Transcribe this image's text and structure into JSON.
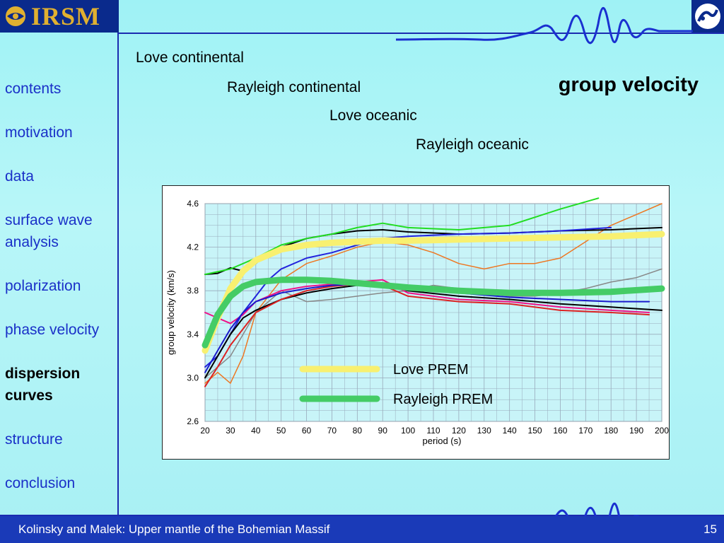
{
  "header": {
    "logo_text": "IRSM",
    "title": "group velocity",
    "labels": [
      "Love continental",
      "Rayleigh continental",
      "Love oceanic",
      "Rayleigh oceanic"
    ]
  },
  "nav": {
    "items": [
      {
        "label": "contents",
        "active": false
      },
      {
        "label": "motivation",
        "active": false
      },
      {
        "label": "data",
        "active": false
      },
      {
        "label": "surface wave analysis",
        "active": false
      },
      {
        "label": "polarization",
        "active": false
      },
      {
        "label": "phase velocity",
        "active": false
      },
      {
        "label": "dispersion curves",
        "active": true
      },
      {
        "label": "structure",
        "active": false
      },
      {
        "label": "conclusion",
        "active": false
      }
    ]
  },
  "footer": {
    "text": "Kolinsky and Malek: Upper mantle of the Bohemian Massif",
    "page": "15"
  },
  "colors": {
    "nav_link": "#1a30c8",
    "frame_blue": "#1a2bb0",
    "love_prem": "#f8f070",
    "rayleigh_prem": "#44cc66"
  },
  "chart_data": {
    "type": "line",
    "xlabel": "period (s)",
    "ylabel": "group velocity (km/s)",
    "xlim": [
      20,
      200
    ],
    "ylim": [
      2.6,
      4.6
    ],
    "xticks": [
      20,
      30,
      40,
      50,
      60,
      70,
      80,
      90,
      100,
      110,
      120,
      130,
      140,
      150,
      160,
      170,
      180,
      190,
      200
    ],
    "yticks": [
      2.6,
      3.0,
      3.4,
      3.8,
      4.2,
      4.6
    ],
    "grid": true,
    "legend_position": "bottom-center",
    "series": [
      {
        "name": "Love PREM",
        "color": "#f8f070",
        "width": 9,
        "legend": true,
        "x": [
          20,
          25,
          30,
          35,
          40,
          50,
          60,
          70,
          80,
          90,
          100,
          120,
          140,
          160,
          180,
          200
        ],
        "y": [
          3.25,
          3.55,
          3.82,
          3.98,
          4.08,
          4.18,
          4.22,
          4.24,
          4.25,
          4.26,
          4.26,
          4.27,
          4.28,
          4.29,
          4.3,
          4.32
        ]
      },
      {
        "name": "Rayleigh PREM",
        "color": "#44cc66",
        "width": 9,
        "legend": true,
        "x": [
          20,
          25,
          30,
          35,
          40,
          50,
          60,
          70,
          80,
          90,
          100,
          120,
          140,
          160,
          180,
          200
        ],
        "y": [
          3.3,
          3.58,
          3.75,
          3.84,
          3.88,
          3.9,
          3.9,
          3.89,
          3.87,
          3.85,
          3.83,
          3.8,
          3.78,
          3.78,
          3.79,
          3.82
        ]
      },
      {
        "color": "#000000",
        "width": 2,
        "x": [
          20,
          25,
          30,
          35,
          40,
          45,
          50,
          55,
          60,
          70,
          80,
          90,
          100,
          120,
          140,
          160,
          180,
          200
        ],
        "y": [
          3.95,
          3.96,
          4.01,
          3.98,
          4.05,
          4.15,
          4.2,
          4.24,
          4.28,
          4.32,
          4.35,
          4.36,
          4.34,
          4.32,
          4.33,
          4.35,
          4.36,
          4.38
        ]
      },
      {
        "color": "#22dd22",
        "width": 2,
        "x": [
          20,
          30,
          40,
          50,
          60,
          70,
          80,
          90,
          100,
          120,
          140,
          160,
          175
        ],
        "y": [
          3.95,
          4.0,
          4.1,
          4.22,
          4.28,
          4.32,
          4.38,
          4.42,
          4.38,
          4.36,
          4.4,
          4.55,
          4.65
        ]
      },
      {
        "color": "#2222dd",
        "width": 2,
        "x": [
          20,
          25,
          30,
          35,
          40,
          45,
          50,
          60,
          70,
          80,
          90,
          100,
          120,
          140,
          160,
          180
        ],
        "y": [
          3.1,
          3.2,
          3.4,
          3.6,
          3.75,
          3.9,
          4.0,
          4.1,
          4.15,
          4.22,
          4.28,
          4.3,
          4.32,
          4.33,
          4.35,
          4.38
        ]
      },
      {
        "color": "#ee7722",
        "width": 1.5,
        "x": [
          20,
          25,
          30,
          35,
          40,
          50,
          60,
          70,
          80,
          90,
          100,
          110,
          120,
          130,
          140,
          150,
          160,
          170,
          180,
          190,
          200
        ],
        "y": [
          2.95,
          3.05,
          2.95,
          3.2,
          3.6,
          3.9,
          4.05,
          4.12,
          4.2,
          4.25,
          4.22,
          4.15,
          4.05,
          4.0,
          4.05,
          4.05,
          4.1,
          4.25,
          4.4,
          4.5,
          4.6
        ]
      },
      {
        "color": "#888888",
        "width": 1.5,
        "x": [
          20,
          30,
          40,
          50,
          60,
          70,
          80,
          90,
          100,
          110,
          120,
          130,
          140,
          150,
          160,
          170,
          180,
          190,
          200
        ],
        "y": [
          3.0,
          3.2,
          3.6,
          3.8,
          3.7,
          3.72,
          3.75,
          3.78,
          3.8,
          3.85,
          3.82,
          3.78,
          3.75,
          3.75,
          3.78,
          3.82,
          3.88,
          3.92,
          4.0
        ]
      },
      {
        "color": "#000000",
        "width": 2,
        "x": [
          20,
          25,
          30,
          35,
          40,
          50,
          60,
          70,
          80,
          90,
          100,
          120,
          140,
          160,
          180,
          200
        ],
        "y": [
          3.0,
          3.2,
          3.4,
          3.55,
          3.62,
          3.72,
          3.78,
          3.82,
          3.85,
          3.85,
          3.8,
          3.75,
          3.72,
          3.68,
          3.65,
          3.62
        ]
      },
      {
        "color": "#ee1188",
        "width": 2,
        "x": [
          20,
          25,
          30,
          35,
          40,
          50,
          60,
          70,
          80,
          90,
          100,
          120,
          140,
          160,
          180,
          195
        ],
        "y": [
          3.6,
          3.55,
          3.5,
          3.58,
          3.7,
          3.8,
          3.84,
          3.86,
          3.88,
          3.9,
          3.78,
          3.72,
          3.7,
          3.65,
          3.62,
          3.6
        ]
      },
      {
        "color": "#dd2222",
        "width": 2,
        "x": [
          20,
          25,
          30,
          35,
          40,
          50,
          60,
          70,
          80,
          90,
          100,
          120,
          140,
          160,
          180,
          195
        ],
        "y": [
          2.92,
          3.1,
          3.3,
          3.45,
          3.6,
          3.72,
          3.8,
          3.84,
          3.86,
          3.85,
          3.75,
          3.7,
          3.68,
          3.62,
          3.6,
          3.58
        ]
      },
      {
        "color": "#1a1acc",
        "width": 2,
        "x": [
          20,
          25,
          30,
          35,
          40,
          50,
          60,
          70,
          80,
          90,
          100,
          120,
          140,
          160,
          180,
          195
        ],
        "y": [
          3.05,
          3.25,
          3.45,
          3.6,
          3.7,
          3.78,
          3.82,
          3.85,
          3.86,
          3.84,
          3.82,
          3.78,
          3.74,
          3.72,
          3.7,
          3.7
        ]
      }
    ]
  }
}
